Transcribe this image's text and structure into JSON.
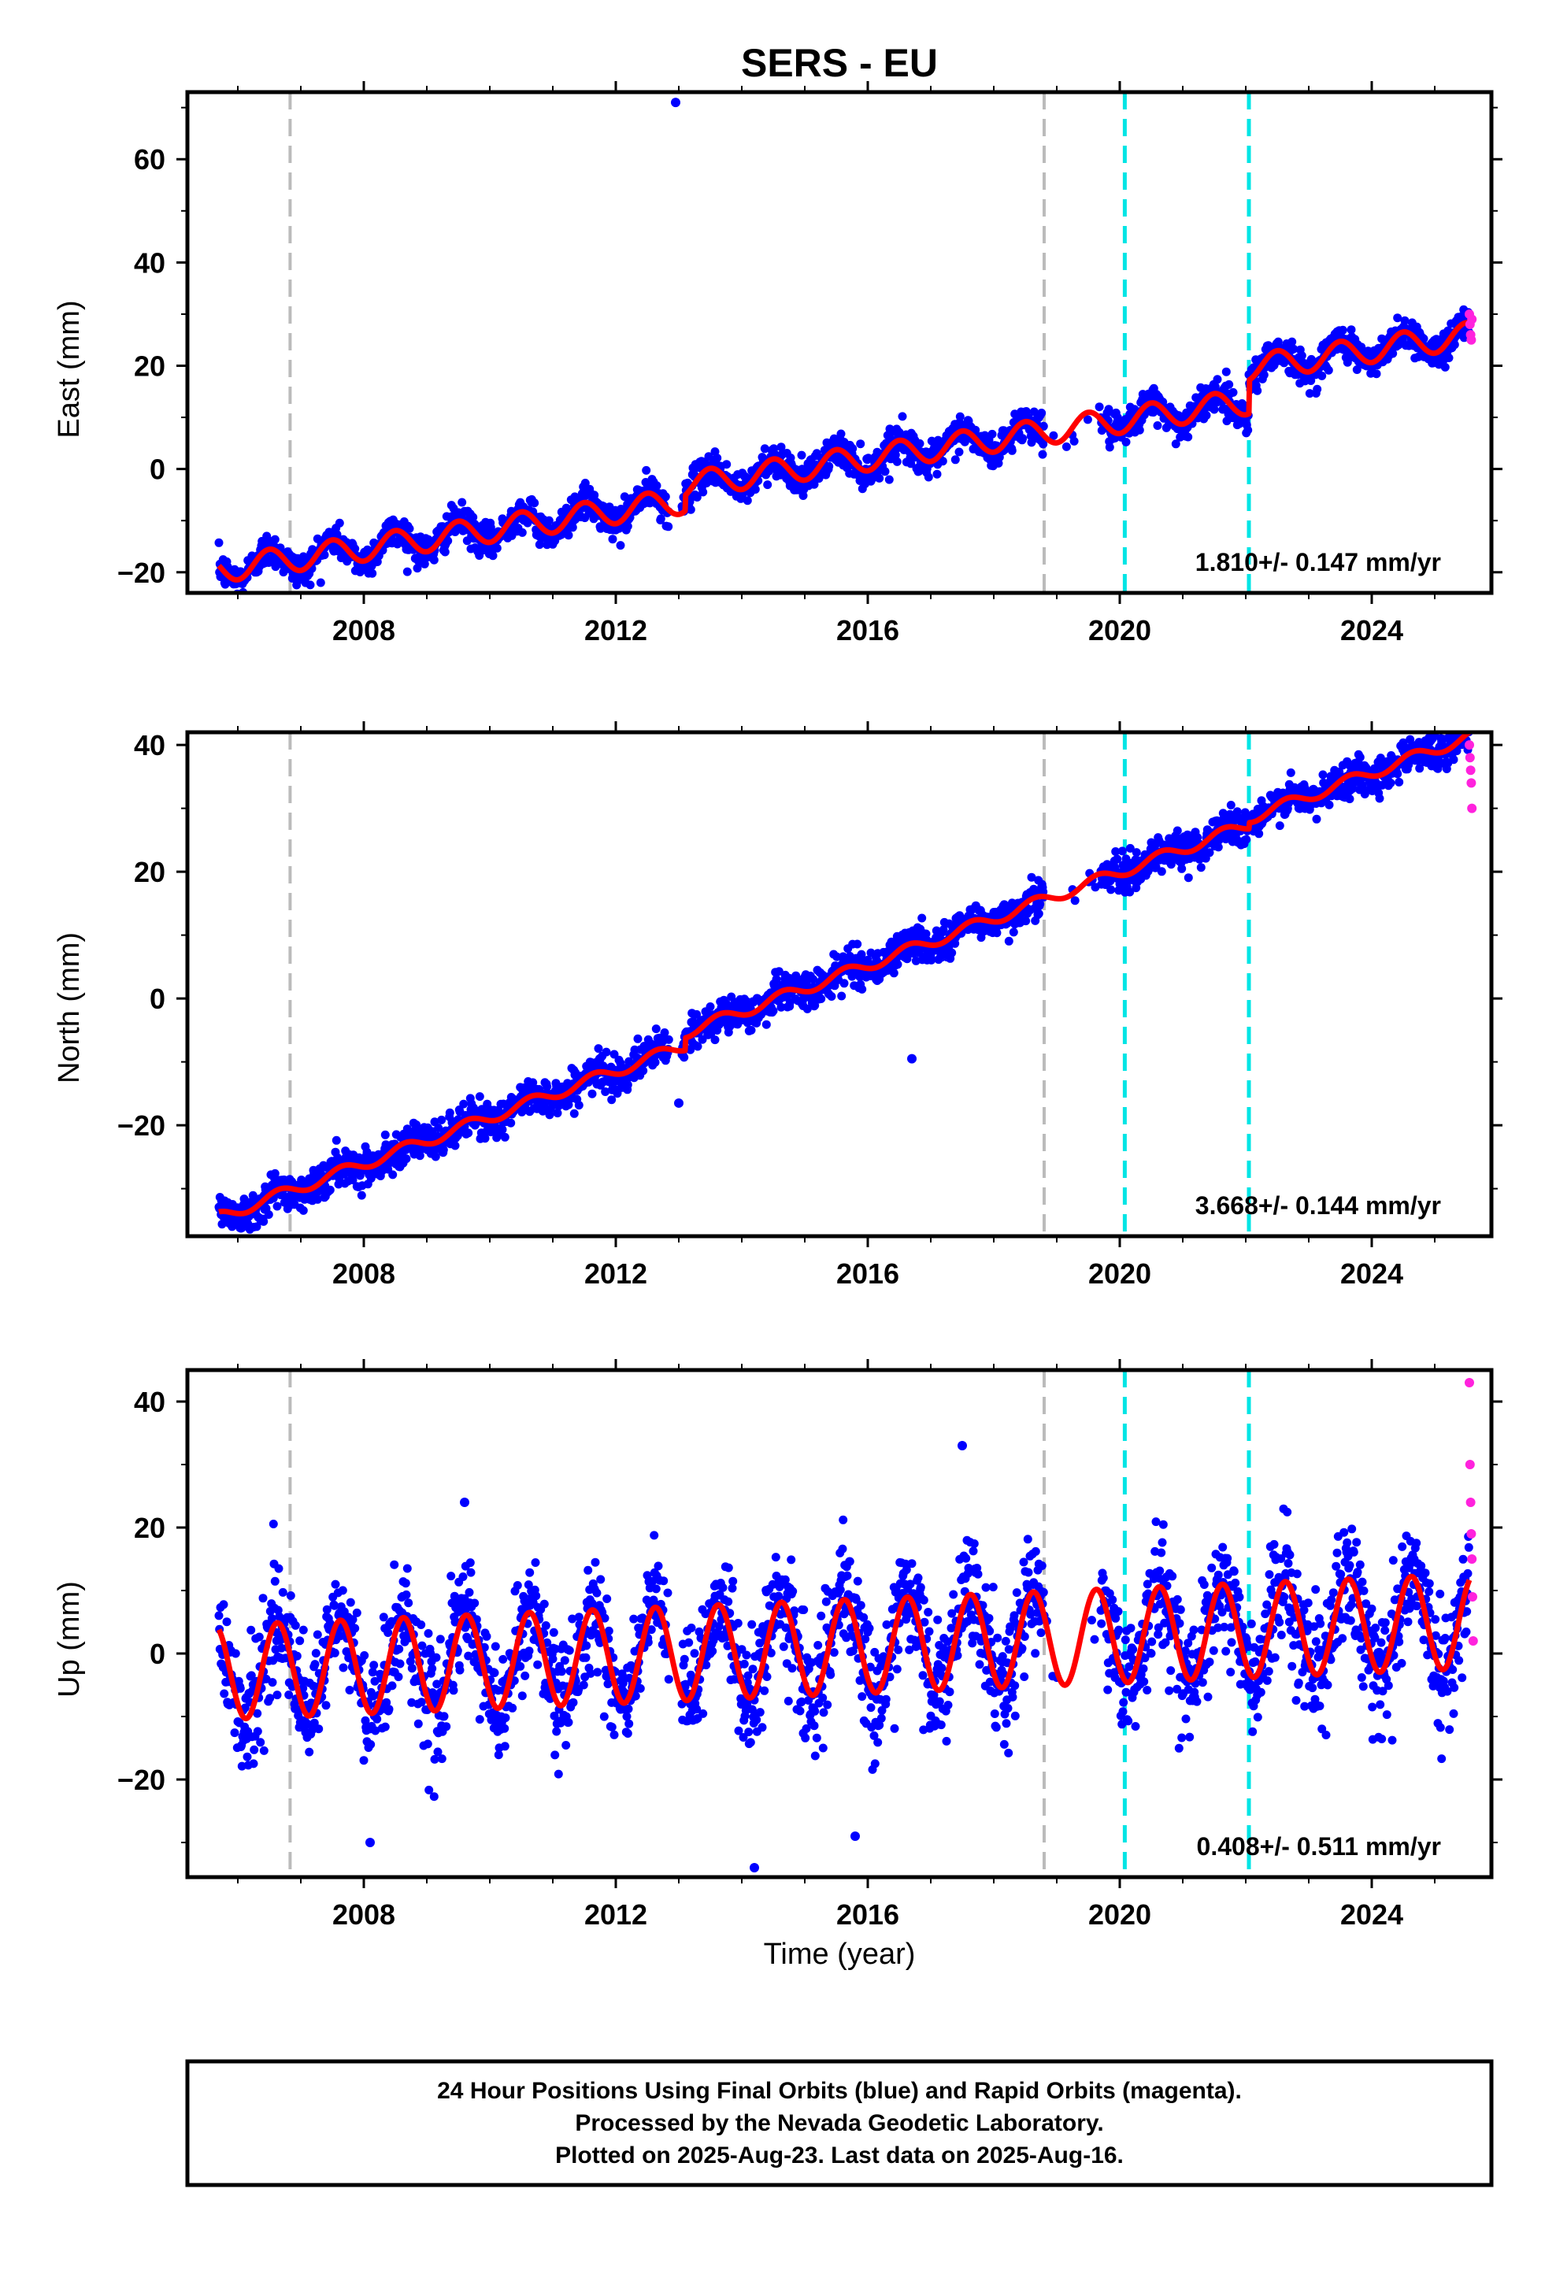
{
  "chart_data": {
    "type": "scatter",
    "title": "SERS - EU",
    "xlabel": "Time (year)",
    "x_ticks": [
      "2008",
      "2012",
      "2016",
      "2020",
      "2024"
    ],
    "xlim": [
      2005.2,
      2025.9
    ],
    "event_lines": {
      "gray": [
        2006.83,
        2018.8
      ],
      "cyan": [
        2020.08,
        2022.05
      ],
      "gray_color": "#bbbbbb",
      "cyan_color": "#00e5e5"
    },
    "colors": {
      "final": "#0000ff",
      "rapid": "#ff22dd",
      "model": "#ff0000"
    },
    "series_names": [
      "Final Orbits (blue)",
      "Rapid Orbits (magenta)"
    ],
    "panels": [
      {
        "id": "east",
        "ylabel": "East (mm)",
        "ylim": [
          -24,
          73
        ],
        "yticks": [
          -20,
          0,
          20,
          40,
          60
        ],
        "rate_text": "1.810+/- 0.147 mm/yr",
        "model": {
          "start": 2005.7,
          "end": 2025.55,
          "x0": 2005.7,
          "y0": -19.5,
          "slope": 1.81,
          "seasonal_amp": 2.5,
          "phase": 0.25,
          "offsets": [
            {
              "x": 2013.1,
              "dy": 3.0
            },
            {
              "x": 2022.05,
              "dy": 6.5
            }
          ],
          "gaps": [
            [
              2012.85,
              2013.05
            ],
            [
              2018.8,
              2019.7
            ]
          ]
        },
        "scatter": {
          "noise": 1.6
        },
        "outliers": [
          {
            "x": 2012.95,
            "y": 71
          }
        ],
        "rapid_points": [
          {
            "x": 2025.55,
            "y": 30
          },
          {
            "x": 2025.56,
            "y": 28
          },
          {
            "x": 2025.57,
            "y": 26
          },
          {
            "x": 2025.58,
            "y": 25
          },
          {
            "x": 2025.59,
            "y": 29
          }
        ]
      },
      {
        "id": "north",
        "ylabel": "North (mm)",
        "ylim": [
          -37.5,
          42
        ],
        "yticks": [
          -20,
          0,
          20,
          40
        ],
        "rate_text": "3.668+/- 0.144 mm/yr",
        "model": {
          "start": 2005.7,
          "end": 2025.55,
          "x0": 2005.7,
          "y0": -34.5,
          "slope": 3.668,
          "seasonal_amp": 0.9,
          "phase": 0.4,
          "offsets": [
            {
              "x": 2013.1,
              "dy": 2.0
            },
            {
              "x": 2022.05,
              "dy": 1.0
            }
          ],
          "gaps": [
            [
              2012.85,
              2013.05
            ],
            [
              2018.8,
              2019.7
            ]
          ]
        },
        "scatter": {
          "noise": 1.4
        },
        "outliers": [
          {
            "x": 2016.7,
            "y": -9.5
          },
          {
            "x": 2013.0,
            "y": -16.5
          }
        ],
        "rapid_points": [
          {
            "x": 2025.55,
            "y": 40
          },
          {
            "x": 2025.56,
            "y": 38
          },
          {
            "x": 2025.57,
            "y": 36
          },
          {
            "x": 2025.58,
            "y": 34
          },
          {
            "x": 2025.59,
            "y": 30
          }
        ]
      },
      {
        "id": "up",
        "ylabel": "Up (mm)",
        "ylim": [
          -35.5,
          45
        ],
        "yticks": [
          -20,
          0,
          20,
          40
        ],
        "rate_text": "0.408+/- 0.511 mm/yr",
        "model": {
          "start": 2005.7,
          "end": 2025.55,
          "x0": 2005.7,
          "y0": -3.0,
          "slope": 0.408,
          "seasonal_amp": 7.5,
          "phase": 0.38,
          "offsets": [],
          "gaps": [
            [
              2012.85,
              2013.05
            ],
            [
              2018.8,
              2019.7
            ]
          ]
        },
        "scatter": {
          "noise": 4.5
        },
        "outliers": [
          {
            "x": 2017.5,
            "y": 33
          },
          {
            "x": 2014.2,
            "y": -34
          },
          {
            "x": 2008.1,
            "y": -30
          },
          {
            "x": 2015.8,
            "y": -29
          },
          {
            "x": 2009.6,
            "y": 24
          }
        ],
        "rapid_points": [
          {
            "x": 2025.55,
            "y": 43
          },
          {
            "x": 2025.56,
            "y": 30
          },
          {
            "x": 2025.57,
            "y": 24
          },
          {
            "x": 2025.58,
            "y": 19
          },
          {
            "x": 2025.59,
            "y": 15
          },
          {
            "x": 2025.6,
            "y": 9
          },
          {
            "x": 2025.61,
            "y": 2
          }
        ]
      }
    ]
  },
  "caption": {
    "line1": "24 Hour Positions Using Final Orbits (blue) and Rapid Orbits (magenta).",
    "line2": "Processed by the Nevada Geodetic Laboratory.",
    "line3": "Plotted on 2025-Aug-23. Last data on 2025-Aug-16."
  }
}
